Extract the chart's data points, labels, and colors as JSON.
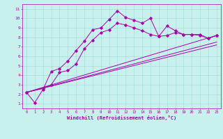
{
  "bg_color": "#c8f0ec",
  "grid_color": "#a8ddd8",
  "line_color": "#aa00aa",
  "marker_color": "#aa00aa",
  "xlabel": "Windchill (Refroidissement éolien,°C)",
  "xlabel_color": "#aa00aa",
  "ylim_min": 0.5,
  "ylim_max": 11.5,
  "xlim_min": -0.5,
  "xlim_max": 23.5,
  "yticks": [
    1,
    2,
    3,
    4,
    5,
    6,
    7,
    8,
    9,
    10,
    11
  ],
  "xticks": [
    0,
    1,
    2,
    3,
    4,
    5,
    6,
    7,
    8,
    9,
    10,
    11,
    12,
    13,
    14,
    15,
    16,
    17,
    18,
    19,
    20,
    21,
    22,
    23
  ],
  "series1_x": [
    0,
    1,
    2,
    3,
    4,
    5,
    6,
    7,
    8,
    9,
    10,
    11,
    12,
    13,
    14,
    15,
    16,
    17,
    18,
    19,
    20,
    21,
    22,
    23
  ],
  "series1_y": [
    2.2,
    1.1,
    2.5,
    4.4,
    4.7,
    5.5,
    6.6,
    7.6,
    8.8,
    9.0,
    9.9,
    10.8,
    10.1,
    9.8,
    9.5,
    10.0,
    8.1,
    9.2,
    8.7,
    8.3,
    8.3,
    8.2,
    7.9,
    8.2
  ],
  "series2_x": [
    0,
    2,
    3,
    4,
    5,
    6,
    7,
    8,
    9,
    10,
    11,
    12,
    13,
    14,
    15,
    16,
    17,
    18,
    19,
    20,
    21,
    22,
    23
  ],
  "series2_y": [
    2.2,
    2.6,
    3.0,
    4.3,
    4.5,
    5.2,
    6.8,
    7.7,
    8.5,
    8.8,
    9.5,
    9.3,
    9.0,
    8.7,
    8.3,
    8.1,
    8.2,
    8.5,
    8.3,
    8.3,
    8.3,
    7.9,
    8.2
  ],
  "series3_x": [
    0,
    23
  ],
  "series3_y": [
    2.2,
    8.2
  ],
  "series4_x": [
    0,
    23
  ],
  "series4_y": [
    2.2,
    7.5
  ],
  "series5_x": [
    0,
    23
  ],
  "series5_y": [
    2.2,
    7.2
  ]
}
